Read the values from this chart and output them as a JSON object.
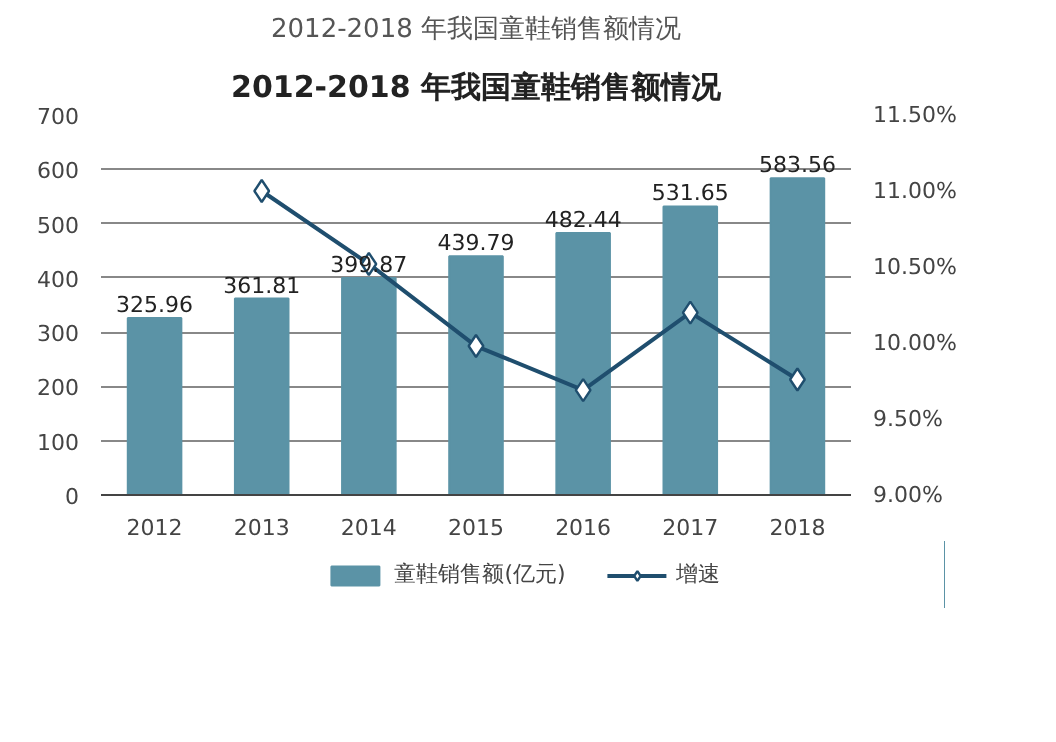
{
  "chart_data": {
    "type": "bar",
    "title": "2012-2018 年我国童鞋销售额情况",
    "subtitle": "2012-2018 年我国童鞋销售额情况",
    "categories": [
      "2012",
      "2013",
      "2014",
      "2015",
      "2016",
      "2017",
      "2018"
    ],
    "series": [
      {
        "name": "童鞋销售额(亿元)",
        "type": "bar",
        "color": "#5b93a6",
        "values": [
          325.96,
          361.81,
          399.87,
          439.79,
          482.44,
          531.65,
          583.56
        ],
        "value_labels": [
          "325.96",
          "361.81",
          "399.87",
          "439.79",
          "482.44",
          "531.65",
          "583.56"
        ]
      },
      {
        "name": "增速",
        "type": "line",
        "axis": "y2",
        "color": "#1f4e6e",
        "marker": "diamond",
        "values": [
          null,
          11.0,
          10.52,
          9.98,
          9.69,
          10.2,
          9.76
        ]
      }
    ],
    "ylim": [
      0,
      700
    ],
    "yticks": [
      0,
      100,
      200,
      300,
      400,
      500,
      600,
      700
    ],
    "y2lim": [
      9,
      11.5
    ],
    "y2ticks": [
      {
        "value": 9,
        "label": "9.00%"
      },
      {
        "value": 9.5,
        "label": "9.50%"
      },
      {
        "value": 10,
        "label": "10.00%"
      },
      {
        "value": 10.5,
        "label": "10.50%"
      },
      {
        "value": 11,
        "label": "11.00%"
      },
      {
        "value": 11.5,
        "label": "11.50%"
      }
    ],
    "grid": "y",
    "legend": "bottom"
  }
}
